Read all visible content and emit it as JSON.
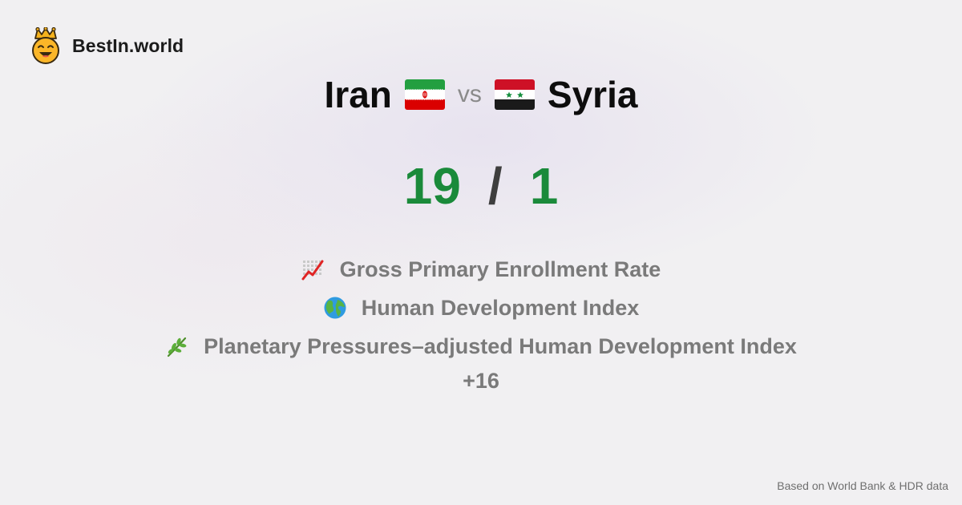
{
  "brand": {
    "name": "BestIn.world",
    "icon": "crowned-smiley-icon"
  },
  "title": {
    "country_a": "Iran",
    "country_a_flag": "iran-flag-icon",
    "vs": "vs",
    "country_b": "Syria",
    "country_b_flag": "syria-flag-icon"
  },
  "score": {
    "a": "19",
    "separator": "/",
    "b": "1",
    "color": "#1a8a3a"
  },
  "metrics": [
    {
      "icon": "chart-increasing-icon",
      "label": "Gross Primary Enrollment Rate"
    },
    {
      "icon": "globe-icon",
      "label": "Human Development Index"
    },
    {
      "icon": "herb-icon",
      "label": "Planetary Pressures–adjusted Human Development Index"
    }
  ],
  "more": "+16",
  "footer": "Based on World Bank & HDR data"
}
